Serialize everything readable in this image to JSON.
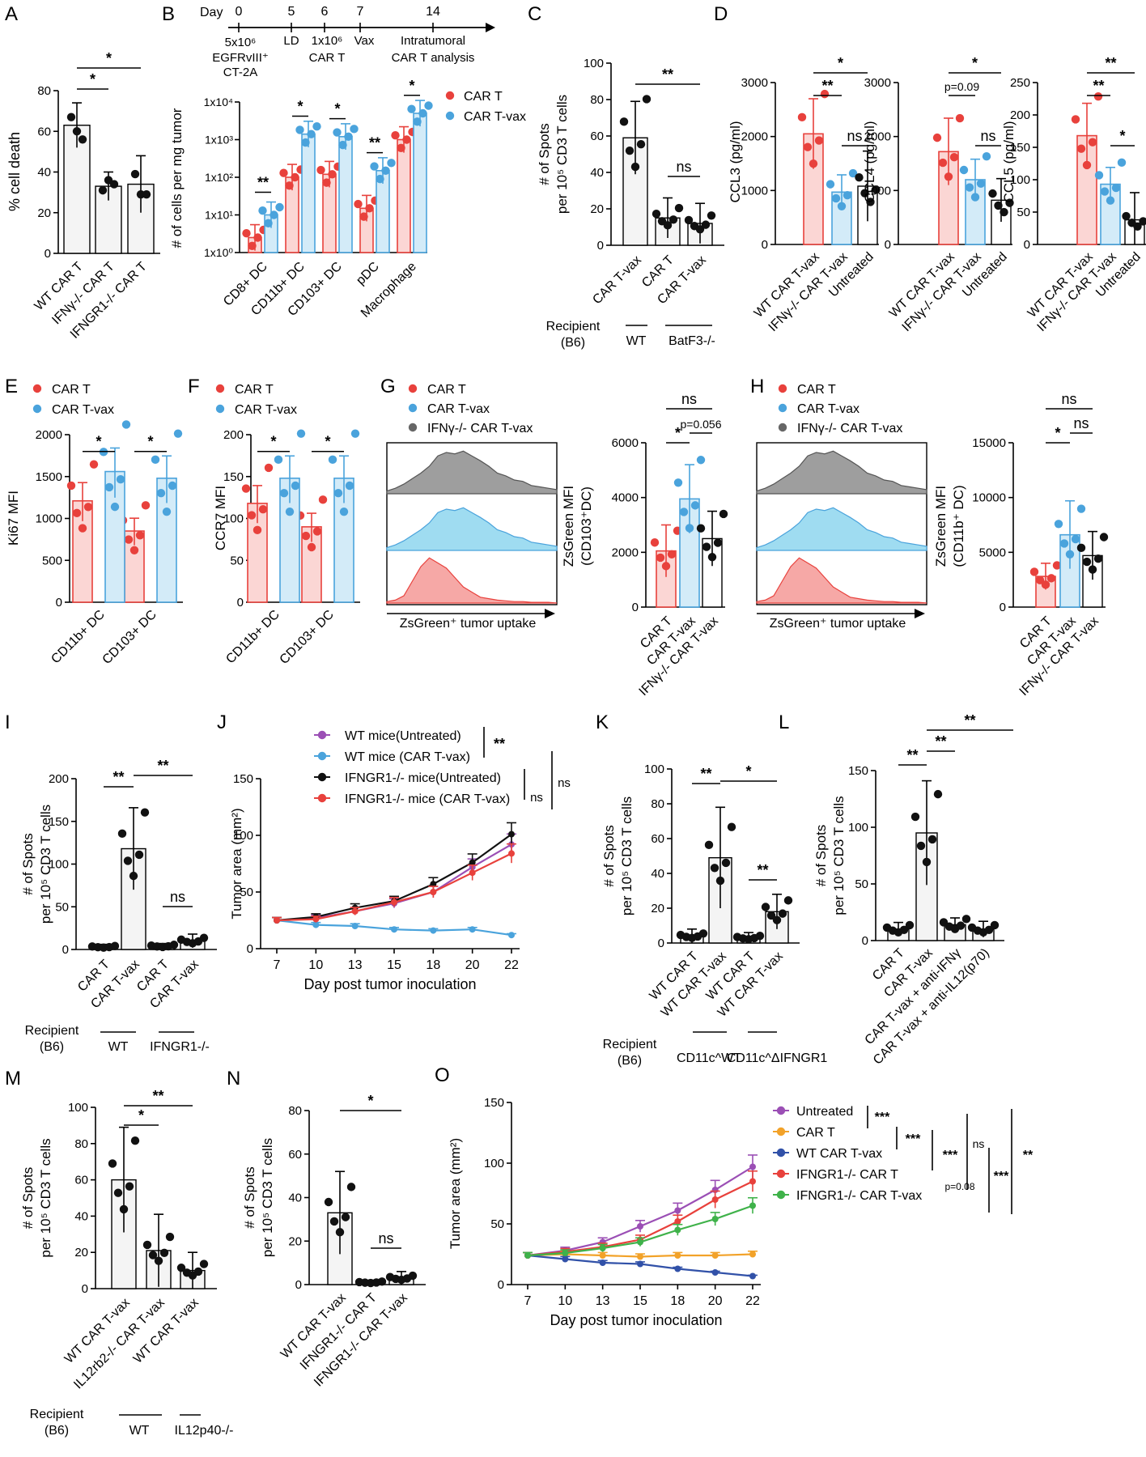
{
  "colors": {
    "red": "#e8413c",
    "blue": "#4aa3dc",
    "black": "#111111",
    "gray": "#666666",
    "purple": "#9b4fb5",
    "orange": "#f2a229",
    "navy": "#3151a8",
    "green": "#3fb24a"
  },
  "chart_data": [
    {
      "panel": "A",
      "type": "bar",
      "ylabel": "% cell death",
      "ylim": [
        0,
        80
      ],
      "yticks": [
        "0",
        "20",
        "40",
        "60",
        "80"
      ],
      "categories": [
        "WT CAR T",
        "IFNγ-/- CAR T",
        "IFNGR1-/- CAR T"
      ],
      "values": [
        63,
        33,
        34
      ],
      "errors": [
        11,
        7,
        14
      ],
      "points": [
        [
          67,
          60,
          56
        ],
        [
          31,
          36,
          34
        ],
        [
          39,
          29,
          29
        ]
      ],
      "sig": [
        "*",
        "*"
      ]
    },
    {
      "panel": "B",
      "type": "bar",
      "scale": "log",
      "ylabel": "# of cells per mg tumor",
      "yticks": [
        "1x10⁰",
        "1x10¹",
        "1x10²",
        "1x10³",
        "1x10⁴"
      ],
      "categories": [
        "CD8+ DC",
        "CD11b+ DC",
        "CD103+ DC",
        "pDC",
        "Macrophage"
      ],
      "series": [
        {
          "name": "CAR T",
          "values": [
            2.5,
            100,
            120,
            15,
            1000
          ]
        },
        {
          "name": "CAR T-vax",
          "values": [
            10,
            1400,
            1200,
            150,
            5000
          ]
        }
      ],
      "sig": [
        "**",
        "*",
        "*",
        "**",
        "*"
      ],
      "timeline": {
        "label": "Day",
        "days": [
          "0",
          "5",
          "6",
          "7",
          "14"
        ],
        "events": [
          "5x10⁶",
          "EGFRvIII⁺",
          "CT-2A",
          "LD",
          "1x10⁶",
          "CAR T",
          "Vax",
          "Intratumoral",
          "CAR T analysis"
        ]
      }
    },
    {
      "panel": "C",
      "type": "bar",
      "ylabel": "# of Spots",
      "ylabel2": "per 10⁵ CD3 T cells",
      "ylim": [
        0,
        100
      ],
      "yticks": [
        "0",
        "20",
        "40",
        "60",
        "80",
        "100"
      ],
      "categories": [
        "CAR T-vax",
        "CAR T",
        "CAR T-vax"
      ],
      "values": [
        59,
        15,
        12
      ],
      "errors": [
        20,
        11,
        11
      ],
      "recipient": {
        "label": "Recipient",
        "sub": "(B6)",
        "groups": [
          "WT",
          "BatF3-/-"
        ]
      },
      "sig": [
        "**",
        "ns"
      ]
    },
    {
      "panel": "D",
      "type": "bar",
      "subplots": [
        {
          "ylabel": "CCL3 (pg/ml)",
          "ylim": [
            0,
            3000
          ],
          "yticks": [
            "0",
            "1000",
            "2000",
            "3000"
          ],
          "values": [
            2050,
            970,
            1080
          ],
          "errors": [
            650,
            320,
            650
          ],
          "sig": [
            "*",
            "**",
            "ns"
          ]
        },
        {
          "ylabel": "CCL4 (pg/ml)",
          "ylim": [
            0,
            3000
          ],
          "yticks": [
            "0",
            "1000",
            "2000",
            "3000"
          ],
          "values": [
            1720,
            1200,
            820
          ],
          "errors": [
            620,
            380,
            400
          ],
          "sig": [
            "*",
            "p=0.09",
            "ns"
          ]
        },
        {
          "ylabel": "CCL5 (pg/ml)",
          "ylim": [
            0,
            250
          ],
          "yticks": [
            "0",
            "50",
            "100",
            "150",
            "200",
            "250"
          ],
          "values": [
            168,
            93,
            38
          ],
          "errors": [
            50,
            26,
            42
          ],
          "sig": [
            "**",
            "**",
            "*"
          ]
        }
      ],
      "categories": [
        "WT CAR T-vax",
        "IFNγ-/- CAR T-vax",
        "Untreated"
      ]
    },
    {
      "panel": "E",
      "type": "bar",
      "ylabel": "Ki67 MFI",
      "ylim": [
        0,
        2000
      ],
      "yticks": [
        "0",
        "500",
        "1000",
        "1500",
        "2000"
      ],
      "categories": [
        "CD11b+ DC",
        "CD103+ DC"
      ],
      "series": [
        {
          "name": "CAR T",
          "values": [
            1210,
            850
          ]
        },
        {
          "name": "CAR T-vax",
          "values": [
            1560,
            1480
          ]
        }
      ],
      "sig": [
        "*",
        "*"
      ]
    },
    {
      "panel": "F",
      "type": "bar",
      "ylabel": "CCR7 MFI",
      "ylim": [
        0,
        200
      ],
      "yticks": [
        "0",
        "50",
        "100",
        "150",
        "200"
      ],
      "categories": [
        "CD11b+ DC",
        "CD103+ DC"
      ],
      "series": [
        {
          "name": "CAR T",
          "values": [
            118,
            90
          ]
        },
        {
          "name": "CAR T-vax",
          "values": [
            148,
            148
          ]
        }
      ],
      "sig": [
        "*",
        "*"
      ]
    },
    {
      "panel": "G",
      "type": "bar",
      "histogram_xlabel": "ZsGreen⁺ tumor uptake",
      "ylabel": "ZsGreen MFI",
      "ylabel2": "(CD103⁺DC)",
      "ylim": [
        0,
        6000
      ],
      "yticks": [
        "0",
        "2000",
        "4000",
        "6000"
      ],
      "legend": [
        "CAR T",
        "CAR T-vax",
        "IFNγ-/- CAR T-vax"
      ],
      "categories": [
        "CAR T",
        "CAR T-vax",
        "IFNγ-/- CAR T-vax"
      ],
      "values": [
        2050,
        3950,
        2500
      ],
      "errors": [
        950,
        1250,
        1000
      ],
      "sig": [
        "ns",
        "*",
        "p=0.056"
      ]
    },
    {
      "panel": "H",
      "type": "bar",
      "histogram_xlabel": "ZsGreen⁺ tumor uptake",
      "ylabel": "ZsGreen MFI",
      "ylabel2": "(CD11b⁺ DC)",
      "ylim": [
        0,
        15000
      ],
      "yticks": [
        "0",
        "5000",
        "10000",
        "15000"
      ],
      "legend": [
        "CAR T",
        "CAR T-vax",
        "IFNγ-/- CAR T-vax"
      ],
      "categories": [
        "CAR T",
        "CAR T-vax",
        "IFNγ-/- CAR T-vax"
      ],
      "values": [
        2800,
        6600,
        4700
      ],
      "errors": [
        1200,
        3100,
        2200
      ],
      "sig": [
        "ns",
        "*",
        "ns"
      ]
    },
    {
      "panel": "I",
      "type": "bar",
      "ylabel": "# of Spots",
      "ylabel2": "per 10⁵ CD3 T cells",
      "ylim": [
        0,
        200
      ],
      "yticks": [
        "0",
        "50",
        "100",
        "150",
        "200"
      ],
      "categories": [
        "CAR T",
        "CAR T-vax",
        "CAR T",
        "CAR T-vax"
      ],
      "values": [
        3,
        118,
        4,
        10
      ],
      "errors": [
        3,
        48,
        3,
        8
      ],
      "recipient": {
        "label": "Recipient",
        "sub": "(B6)",
        "groups": [
          "WT",
          "IFNGR1-/-"
        ]
      },
      "sig": [
        "**",
        "**",
        "ns"
      ]
    },
    {
      "panel": "J",
      "type": "line",
      "xlabel": "Day post tumor inoculation",
      "ylabel": "Tumor area (mm²)",
      "x": [
        7,
        10,
        13,
        15,
        18,
        20,
        22
      ],
      "ylim": [
        0,
        150
      ],
      "yticks": [
        "0",
        "50",
        "100",
        "150"
      ],
      "series": [
        {
          "name": "WT mice(Untreated)",
          "values": [
            25,
            27,
            33,
            40,
            50,
            72,
            92
          ]
        },
        {
          "name": "WT mice (CAR T-vax)",
          "values": [
            25,
            21,
            20,
            17,
            16,
            17,
            12
          ]
        },
        {
          "name": "IFNGR1-/- mice(Untreated)",
          "values": [
            25,
            28,
            36,
            42,
            57,
            76,
            101
          ]
        },
        {
          "name": "IFNGR1-/- mice (CAR T-vax)",
          "values": [
            25,
            26,
            33,
            41,
            50,
            67,
            84
          ]
        }
      ],
      "sig": [
        "**",
        "ns",
        "ns"
      ]
    },
    {
      "panel": "K",
      "type": "bar",
      "ylabel": "# of Spots",
      "ylabel2": "per 10⁵ CD3 T cells",
      "ylim": [
        0,
        100
      ],
      "yticks": [
        "0",
        "20",
        "40",
        "60",
        "80",
        "100"
      ],
      "categories": [
        "WT CAR T",
        "WT CAR T-vax",
        "WT CAR T",
        "WT CAR T-vax"
      ],
      "values": [
        4,
        49,
        3,
        18
      ],
      "errors": [
        4,
        29,
        3,
        10
      ],
      "recipient": {
        "label": "Recipient",
        "sub": "(B6)",
        "groups": [
          "CD11c^WT",
          "CD11c^ΔIFNGR1"
        ]
      },
      "sig": [
        "**",
        "*",
        "**"
      ]
    },
    {
      "panel": "L",
      "type": "bar",
      "ylabel": "# of Spots",
      "ylabel2": "per 10⁵ CD3 T cells",
      "ylim": [
        0,
        150
      ],
      "yticks": [
        "0",
        "50",
        "100",
        "150"
      ],
      "categories": [
        "CAR T",
        "CAR T-vax",
        "CAR T-vax + anti-IFNγ",
        "CAR T-vax + anti-IL12(p70)"
      ],
      "values": [
        10,
        95,
        14,
        10
      ],
      "errors": [
        6,
        46,
        6,
        7
      ],
      "sig": [
        "**",
        "**",
        "**"
      ]
    },
    {
      "panel": "M",
      "type": "bar",
      "ylabel": "# of Spots",
      "ylabel2": "per 10⁵ CD3 T cells",
      "ylim": [
        0,
        100
      ],
      "yticks": [
        "0",
        "20",
        "40",
        "60",
        "80",
        "100"
      ],
      "categories": [
        "WT CAR T-vax",
        "IL12rb2-/- CAR T-vax",
        "WT CAR T-vax"
      ],
      "values": [
        60,
        21,
        10
      ],
      "errors": [
        29,
        20,
        10
      ],
      "recipient": {
        "label": "Recipient",
        "sub": "(B6)",
        "groups": [
          "WT",
          "IL12p40-/-"
        ]
      },
      "sig": [
        "**",
        "*"
      ]
    },
    {
      "panel": "N",
      "type": "bar",
      "ylabel": "# of Spots",
      "ylabel2": "per 10⁵ CD3 T cells",
      "ylim": [
        0,
        80
      ],
      "yticks": [
        "0",
        "20",
        "40",
        "60",
        "80"
      ],
      "categories": [
        "WT CAR T-vax",
        "IFNGR1-/- CAR T",
        "IFNGR1-/- CAR T-vax"
      ],
      "values": [
        33,
        1,
        3
      ],
      "errors": [
        19,
        1,
        3
      ],
      "sig": [
        "*",
        "ns"
      ]
    },
    {
      "panel": "O",
      "type": "line",
      "xlabel": "Day post tumor inoculation",
      "ylabel": "Tumor area (mm²)",
      "x": [
        7,
        10,
        13,
        15,
        18,
        20,
        22
      ],
      "ylim": [
        0,
        150
      ],
      "yticks": [
        "0",
        "50",
        "100",
        "150"
      ],
      "series": [
        {
          "name": "Untreated",
          "values": [
            24,
            28,
            35,
            48,
            61,
            78,
            97
          ]
        },
        {
          "name": "CAR T",
          "values": [
            24,
            25,
            24,
            23,
            24,
            24,
            25
          ]
        },
        {
          "name": "WT CAR T-vax",
          "values": [
            24,
            21,
            18,
            17,
            13,
            10,
            7
          ]
        },
        {
          "name": "IFNGR1-/- CAR T",
          "values": [
            24,
            27,
            31,
            37,
            52,
            70,
            85
          ]
        },
        {
          "name": "IFNGR1-/- CAR T-vax",
          "values": [
            24,
            26,
            30,
            35,
            45,
            54,
            65
          ]
        }
      ],
      "sig": [
        "***",
        "***",
        "***",
        "ns",
        "***",
        "**",
        "p=0.08"
      ]
    }
  ]
}
